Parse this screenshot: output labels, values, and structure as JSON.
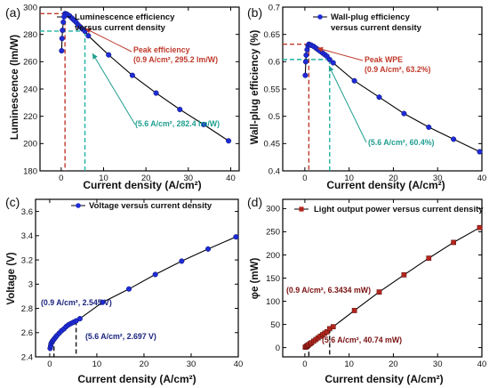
{
  "chart_data": [
    {
      "type": "line",
      "panel_label": "(a)",
      "xlabel": "Current density (A/cm²)",
      "ylabel": "Luminescence (lm/W)",
      "xlim": [
        -5,
        42
      ],
      "ylim": [
        180,
        300
      ],
      "xticks": [
        0,
        10,
        20,
        30,
        40
      ],
      "yticks": [
        180,
        200,
        220,
        240,
        260,
        280,
        300
      ],
      "x_tick_labels": [
        "0",
        "10",
        "20",
        "30",
        "40"
      ],
      "y_tick_labels": [
        "180",
        "200",
        "220",
        "240",
        "260",
        "280",
        "300"
      ],
      "legend": [
        "Luminescence efficiency",
        "versus current density"
      ],
      "marker": "circle",
      "color": "#1f2bd6",
      "series": [
        {
          "x": [
            0.1,
            0.2,
            0.3,
            0.5,
            0.7,
            0.9,
            1.2,
            1.5,
            2.0,
            2.5,
            3.0,
            3.5,
            4.0,
            4.5,
            5.0,
            5.6,
            6.4,
            11.2,
            16.8,
            22.4,
            28.0,
            33.6,
            39.5
          ],
          "y": [
            268,
            277,
            283,
            289,
            293,
            295.2,
            295,
            294.5,
            293.5,
            292,
            290.5,
            289,
            287,
            285.5,
            284,
            282.4,
            279,
            265,
            250,
            237,
            225,
            214,
            202
          ]
        }
      ],
      "annotations": [
        {
          "lines": [
            "Peak efficiency",
            "(0.9 A/cm², 295.2 lm/W)"
          ],
          "color": "#c0392b"
        },
        {
          "lines": [
            "(5.6 A/cm², 282.4 lm/W)"
          ],
          "color": "#1f9e8f"
        }
      ],
      "guides": [
        {
          "x": 0.9,
          "y": 295.2,
          "color": "#c0392b"
        },
        {
          "x": 5.6,
          "y": 282.4,
          "color": "#1fb3a3"
        }
      ]
    },
    {
      "type": "line",
      "panel_label": "(b)",
      "xlabel": "Current density (A/cm²)",
      "ylabel": "Wall-plug efficiency (%)",
      "xlim": [
        -5,
        40
      ],
      "ylim": [
        0.4,
        0.7
      ],
      "xticks": [
        0,
        10,
        20,
        30,
        40
      ],
      "yticks": [
        0.4,
        0.45,
        0.5,
        0.55,
        0.6,
        0.65,
        0.7
      ],
      "x_tick_labels": [
        "0",
        "10",
        "20",
        "30",
        "40"
      ],
      "y_tick_labels": [
        "0.4",
        "0.45",
        "0.5",
        "0.55",
        "0.6",
        "0.65",
        "0.7"
      ],
      "legend": [
        "Wall-plug efficiency",
        "versus current density"
      ],
      "marker": "circle",
      "color": "#1f2bd6",
      "series": [
        {
          "x": [
            0.1,
            0.2,
            0.3,
            0.5,
            0.7,
            0.9,
            1.2,
            1.5,
            2.0,
            2.5,
            3.0,
            3.5,
            4.0,
            4.5,
            5.0,
            5.6,
            6.4,
            11.2,
            16.8,
            22.4,
            28.0,
            33.6,
            39.5
          ],
          "y": [
            0.575,
            0.6,
            0.612,
            0.622,
            0.629,
            0.632,
            0.631,
            0.63,
            0.628,
            0.625,
            0.622,
            0.619,
            0.616,
            0.613,
            0.61,
            0.604,
            0.598,
            0.565,
            0.535,
            0.505,
            0.48,
            0.458,
            0.435
          ]
        }
      ],
      "annotations": [
        {
          "lines": [
            "Peak WPE",
            "(0.9 A/cm², 63.2%)"
          ],
          "color": "#c0392b"
        },
        {
          "lines": [
            "(5.6 A/cm², 60.4%)"
          ],
          "color": "#1f9e8f"
        }
      ],
      "guides": [
        {
          "x": 0.9,
          "y": 0.632,
          "color": "#c0392b"
        },
        {
          "x": 5.6,
          "y": 0.604,
          "color": "#1fb3a3"
        }
      ]
    },
    {
      "type": "line",
      "panel_label": "(c)",
      "xlabel": "Current density (A/cm²)",
      "ylabel": "Voltage (V)",
      "xlim": [
        -3,
        40
      ],
      "ylim": [
        2.4,
        3.7
      ],
      "xticks": [
        0,
        10,
        20,
        30,
        40
      ],
      "yticks": [
        2.4,
        2.6,
        2.8,
        3.0,
        3.2,
        3.4,
        3.6
      ],
      "x_tick_labels": [
        "0",
        "10",
        "20",
        "30",
        "40"
      ],
      "y_tick_labels": [
        "2.4",
        "2.6",
        "2.8",
        "3",
        "3.2",
        "3.4",
        "3.6"
      ],
      "legend": [
        "Voltage versus current density"
      ],
      "marker": "circle",
      "color": "#1f2bd6",
      "series": [
        {
          "x": [
            0.1,
            0.2,
            0.3,
            0.5,
            0.7,
            0.9,
            1.2,
            1.5,
            2.0,
            2.5,
            3.0,
            3.5,
            4.0,
            4.5,
            5.0,
            5.6,
            6.4,
            11.2,
            16.8,
            22.4,
            28.0,
            33.6,
            39.5
          ],
          "y": [
            2.47,
            2.49,
            2.51,
            2.525,
            2.535,
            2.545,
            2.56,
            2.575,
            2.595,
            2.615,
            2.63,
            2.65,
            2.665,
            2.675,
            2.685,
            2.697,
            2.715,
            2.85,
            2.96,
            3.08,
            3.19,
            3.29,
            3.39
          ]
        }
      ],
      "annotations": [
        {
          "lines": [
            "(0.9 A/cm², 2.545 V)"
          ],
          "color": "#1a237e"
        },
        {
          "lines": [
            "(5.6 A/cm², 2.697 V)"
          ],
          "color": "#1a237e"
        }
      ],
      "guides": [
        {
          "x": 0.9,
          "y": 2.545,
          "color": "#111"
        },
        {
          "x": 5.6,
          "y": 2.697,
          "color": "#111"
        }
      ]
    },
    {
      "type": "line",
      "panel_label": "(d)",
      "xlabel": "Current density (A/cm²)",
      "ylabel": "φe (mW)",
      "xlim": [
        -5,
        40
      ],
      "ylim": [
        -20,
        320
      ],
      "xticks": [
        0,
        10,
        20,
        30,
        40
      ],
      "yticks": [
        0,
        50,
        100,
        150,
        200,
        250,
        300
      ],
      "x_tick_labels": [
        "0",
        "10",
        "20",
        "30",
        "40"
      ],
      "y_tick_labels": [
        "0",
        "50",
        "100",
        "150",
        "200",
        "250",
        "300"
      ],
      "legend": [
        "Light output power versus current density"
      ],
      "marker": "square",
      "color": "#b3261e",
      "series": [
        {
          "x": [
            0.1,
            0.3,
            0.5,
            0.7,
            0.9,
            1.2,
            1.5,
            2.0,
            2.5,
            3.0,
            3.5,
            4.0,
            4.5,
            5.0,
            5.6,
            6.4,
            11.2,
            16.8,
            22.4,
            28.0,
            33.6,
            39.5
          ],
          "y": [
            0.7,
            2.2,
            3.6,
            5.0,
            6.34,
            8.5,
            10.5,
            14,
            17.5,
            21,
            24.5,
            27.8,
            31,
            34,
            40.74,
            45,
            80,
            120,
            157,
            193,
            227,
            259
          ]
        }
      ],
      "annotations": [
        {
          "lines": [
            "(0.9 A/cm², 6.3434 mW)"
          ],
          "color": "#7a1010"
        },
        {
          "lines": [
            "(5.6 A/cm², 40.74 mW)"
          ],
          "color": "#7a1010"
        }
      ],
      "guides": [
        {
          "x": 0.9,
          "y": 6.34,
          "color": "#111"
        },
        {
          "x": 5.6,
          "y": 40.74,
          "color": "#111"
        }
      ]
    }
  ]
}
